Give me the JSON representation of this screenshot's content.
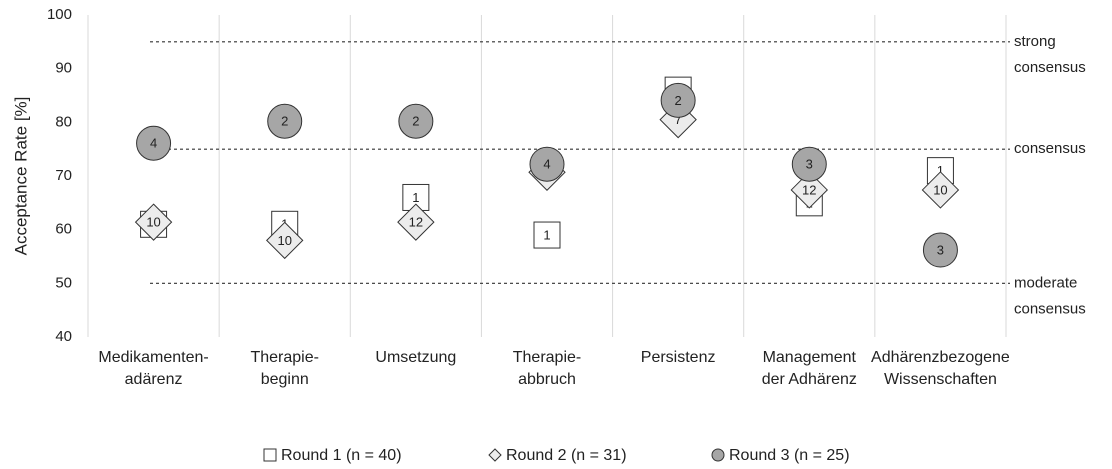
{
  "chart_data": {
    "type": "scatter",
    "y_label": "Acceptance Rate [%]",
    "categories": [
      [
        "Medikamenten-",
        "adärenz"
      ],
      [
        "Therapie-",
        "beginn"
      ],
      [
        "Umsetzung"
      ],
      [
        "Therapie-",
        "abbruch"
      ],
      [
        "Persistenz"
      ],
      [
        "Management",
        "der Adhärenz"
      ],
      [
        "Adhärenzbezogene",
        "Wissenschaften"
      ]
    ],
    "ylim": [
      40,
      100
    ],
    "yticks": [
      40,
      50,
      60,
      70,
      80,
      90,
      100
    ],
    "reference_lines": [
      {
        "value": 95,
        "label": [
          "strong",
          "consensus"
        ]
      },
      {
        "value": 75,
        "label": [
          "consensus"
        ]
      },
      {
        "value": 50,
        "label": [
          "moderate",
          "consensus"
        ]
      }
    ],
    "series": [
      {
        "name": "Round 1 (n = 40)",
        "marker": "square",
        "color": "#ffffff",
        "values": [
          61,
          61,
          66,
          59,
          86,
          65,
          71
        ],
        "labels": [
          "1",
          "1",
          "1",
          "1",
          "1",
          "1",
          "1"
        ]
      },
      {
        "name": "Round 2 (n = 31)",
        "marker": "diamond",
        "color": "#ececec",
        "values": [
          61.4,
          58,
          61.4,
          70.7,
          80.5,
          67.4,
          67.4
        ],
        "labels": [
          "10",
          "10",
          "12",
          null,
          "7",
          "12",
          "10"
        ]
      },
      {
        "name": "Round 3 (n = 25)",
        "marker": "circle",
        "color": "#a6a6a6",
        "values": [
          76.1,
          80.2,
          80.2,
          72.2,
          84.1,
          72.2,
          56.2
        ],
        "labels": [
          "4",
          "2",
          "2",
          "4",
          "2",
          "3",
          "3"
        ]
      }
    ]
  }
}
